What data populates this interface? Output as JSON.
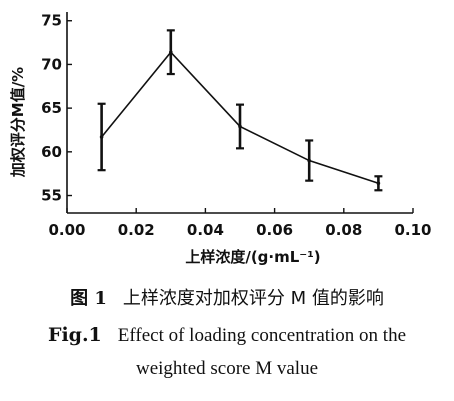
{
  "chart_data": {
    "type": "line",
    "xlabel": "上样浓度/(g·mL⁻¹)",
    "ylabel": "加权评分M值/%",
    "xlim": [
      0.0,
      0.1
    ],
    "ylim": [
      53,
      76
    ],
    "xticks": [
      0.0,
      0.02,
      0.04,
      0.06,
      0.08,
      0.1
    ],
    "xtick_labels": [
      "0.00",
      "0.02",
      "0.04",
      "0.06",
      "0.08",
      "0.10"
    ],
    "yticks": [
      55,
      60,
      65,
      70,
      75
    ],
    "ytick_labels": [
      "55",
      "60",
      "65",
      "70",
      "75"
    ],
    "grid": false,
    "series": [
      {
        "x": [
          0.01,
          0.03,
          0.05,
          0.07,
          0.09
        ],
        "y": [
          61.7,
          71.4,
          62.9,
          59.0,
          56.4
        ],
        "error": [
          3.8,
          2.5,
          2.5,
          2.3,
          0.8
        ],
        "color": "#111111"
      }
    ]
  },
  "caption": {
    "cn_label": "图 1",
    "cn_text": "上样浓度对加权评分 M 值的影响",
    "en_label": "Fig.1",
    "en_text_line1": "Effect of loading concentration on the",
    "en_text_line2": "weighted score M value"
  }
}
